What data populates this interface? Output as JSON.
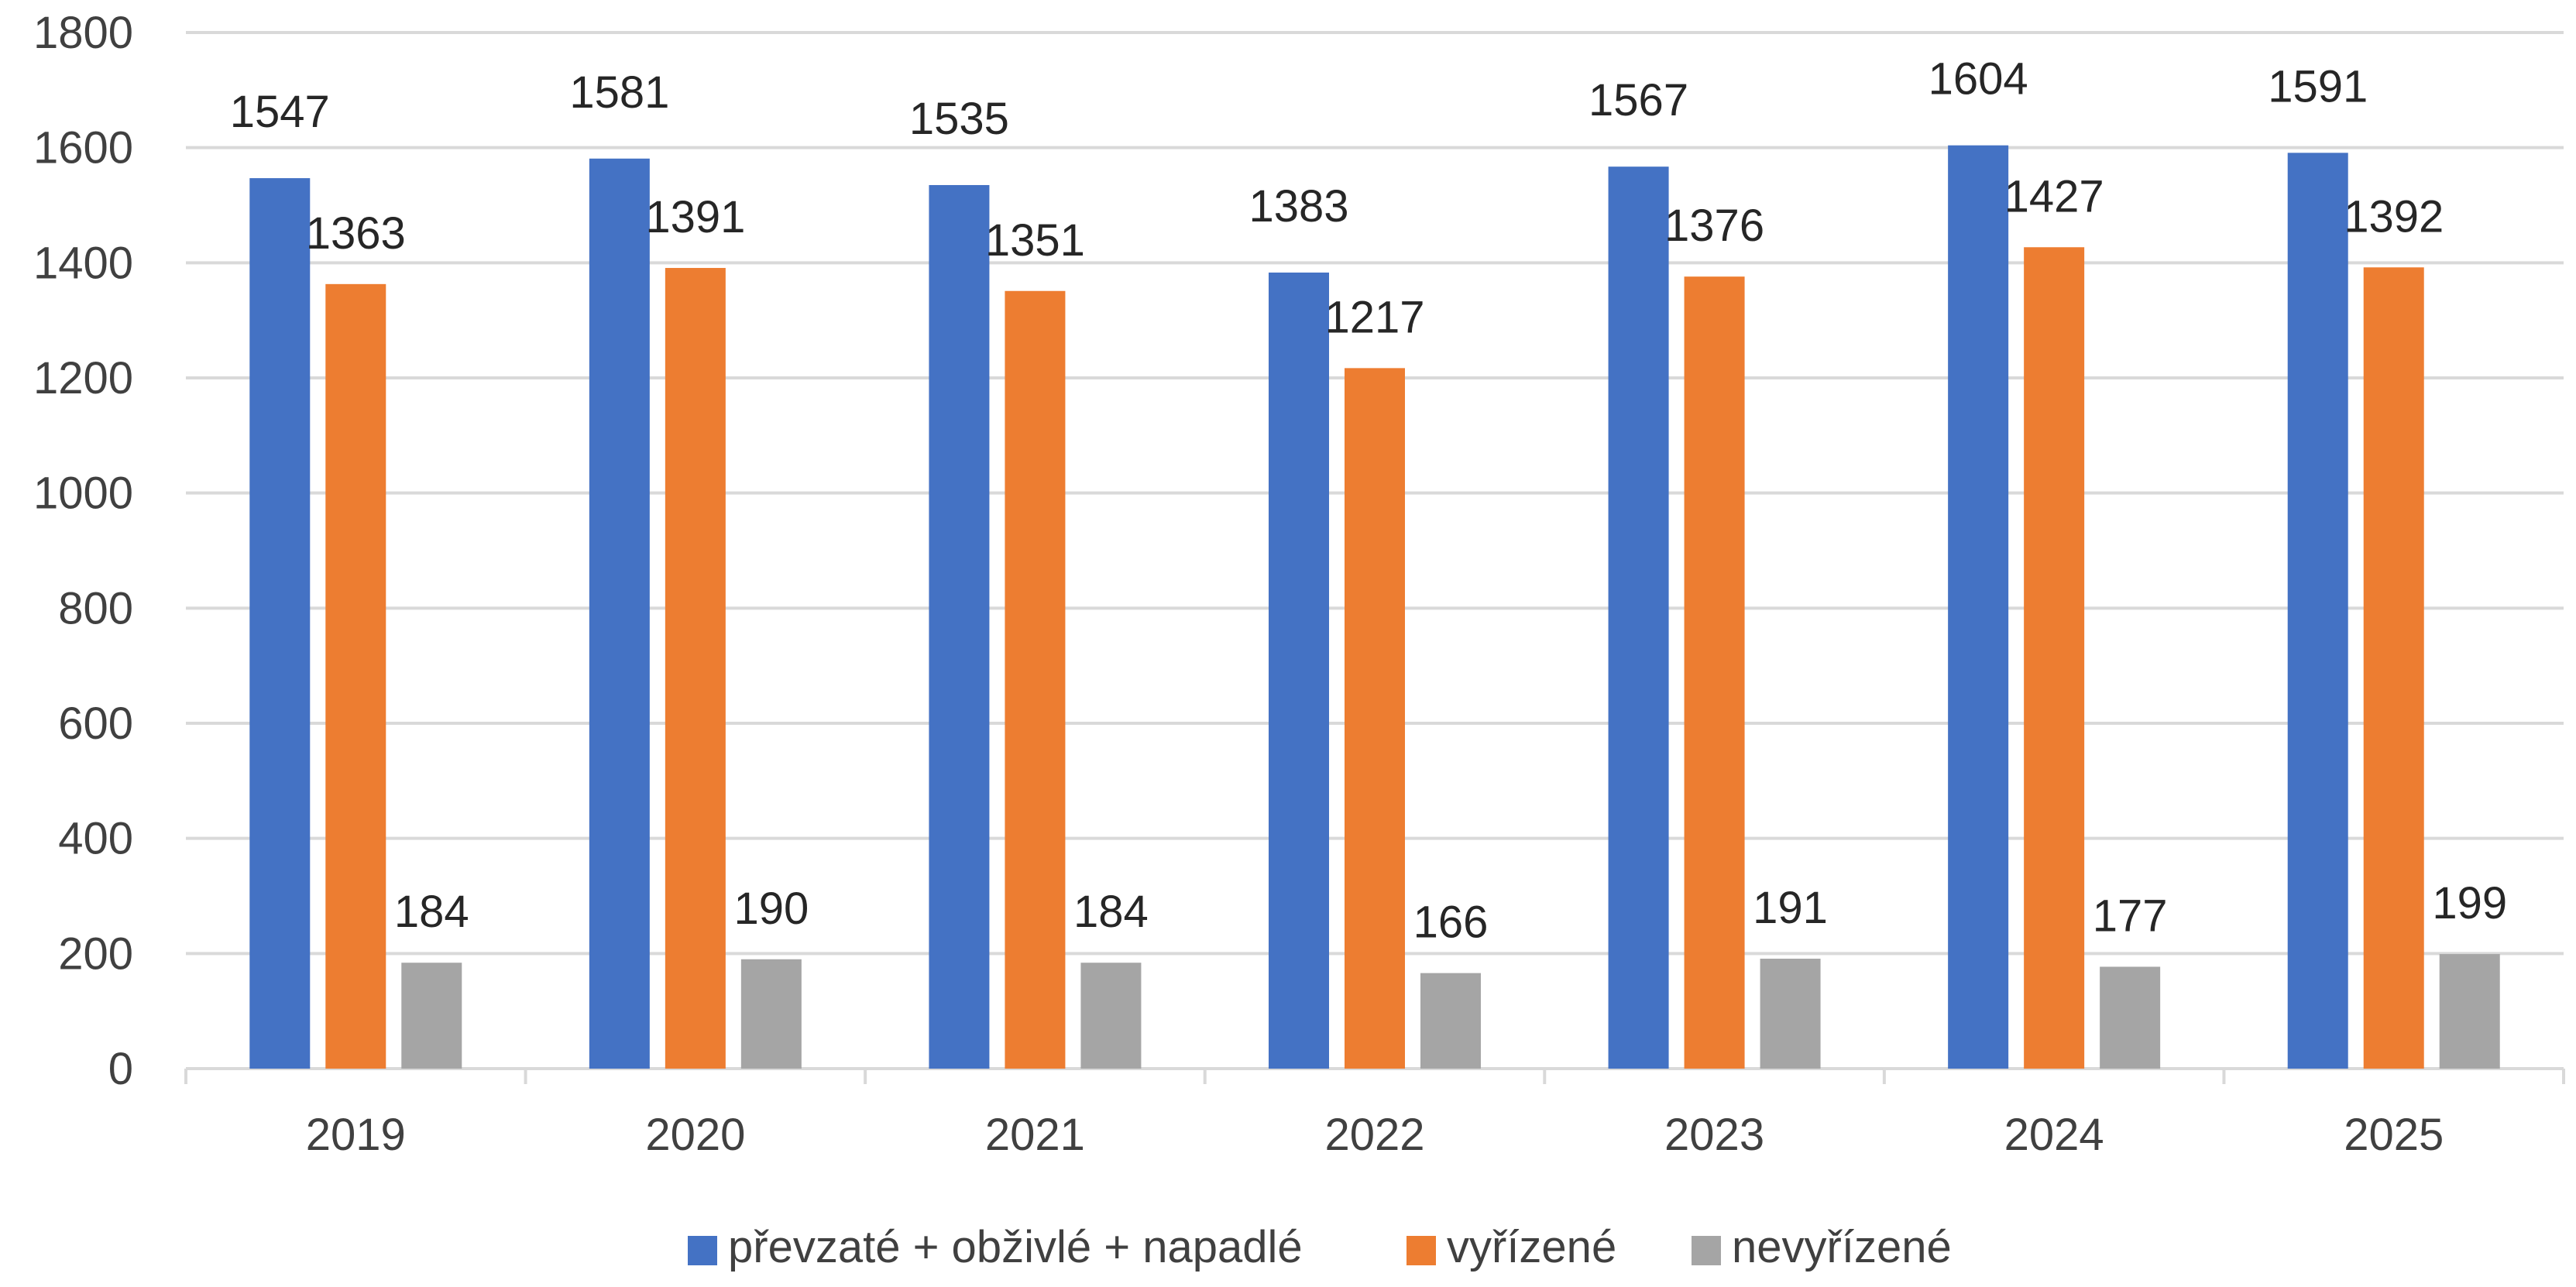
{
  "chart_data": {
    "type": "bar",
    "categories": [
      "2019",
      "2020",
      "2021",
      "2022",
      "2023",
      "2024",
      "2025"
    ],
    "series": [
      {
        "name": "převzaté + obživlé + napadlé",
        "color": "#4472C4",
        "values": [
          1547,
          1581,
          1535,
          1383,
          1567,
          1604,
          1591
        ]
      },
      {
        "name": "vyřízené",
        "color": "#ED7D31",
        "values": [
          1363,
          1391,
          1351,
          1217,
          1376,
          1427,
          1392
        ]
      },
      {
        "name": "nevyřízené",
        "color": "#A5A5A5",
        "values": [
          184,
          190,
          184,
          166,
          191,
          177,
          199
        ]
      }
    ],
    "title": "",
    "xlabel": "",
    "ylabel": "",
    "ylim": [
      0,
      1800
    ],
    "yticks": [
      0,
      200,
      400,
      600,
      800,
      1000,
      1200,
      1400,
      1600,
      1800
    ],
    "grid": true,
    "legend": "bottom",
    "data_labels": true
  }
}
